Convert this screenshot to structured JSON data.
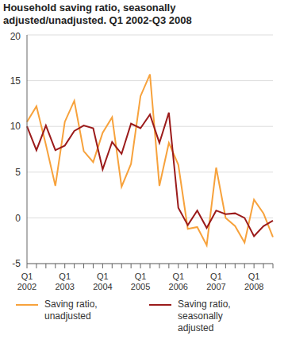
{
  "chart_data": {
    "type": "line",
    "title": "Household saving ratio, seasonally adjusted/unadjusted. Q1 2002-Q3 2008",
    "categories": [
      "Q1 2002",
      null,
      null,
      null,
      "Q1 2003",
      null,
      null,
      null,
      "Q1 2004",
      null,
      null,
      null,
      "Q1 2005",
      null,
      null,
      null,
      "Q1 2006",
      null,
      null,
      null,
      "Q1 2007",
      null,
      null,
      null,
      "Q1 2008",
      null,
      null
    ],
    "series": [
      {
        "name": "Saving ratio, unadjusted",
        "color": "#f7a23c",
        "values": [
          10.5,
          12.2,
          8.0,
          3.5,
          10.5,
          12.8,
          7.3,
          6.1,
          9.3,
          11.0,
          3.4,
          5.9,
          13.3,
          15.7,
          3.5,
          8.2,
          5.8,
          -1.2,
          -1.0,
          -3.0,
          5.5,
          0.0,
          -0.9,
          -2.7,
          2.0,
          0.5,
          -2.1
        ]
      },
      {
        "name": "Saving ratio, seasonally adjusted",
        "color": "#9b1b1b",
        "values": [
          10.0,
          7.4,
          10.1,
          7.4,
          7.9,
          9.5,
          10.1,
          9.8,
          5.3,
          8.3,
          7.0,
          10.3,
          9.8,
          11.3,
          8.2,
          11.5,
          1.1,
          -0.8,
          0.8,
          -1.1,
          0.8,
          0.4,
          0.5,
          0.0,
          -2.0,
          -0.9,
          -0.3
        ]
      }
    ],
    "ylim": [
      -5,
      20
    ],
    "yticks": [
      -5,
      0,
      5,
      10,
      15,
      20
    ],
    "grid": true,
    "legend": "bottom"
  }
}
